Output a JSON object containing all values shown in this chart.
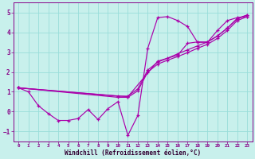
{
  "xlabel": "Windchill (Refroidissement éolien,°C)",
  "ylabel": "",
  "background_color": "#c8f0ec",
  "grid_color": "#99ddda",
  "line_color": "#aa00aa",
  "spine_color": "#880088",
  "xlim": [
    -0.5,
    23.5
  ],
  "ylim": [
    -1.5,
    5.5
  ],
  "yticks": [
    -1,
    0,
    1,
    2,
    3,
    4,
    5
  ],
  "xticks": [
    0,
    1,
    2,
    3,
    4,
    5,
    6,
    7,
    8,
    9,
    10,
    11,
    12,
    13,
    14,
    15,
    16,
    17,
    18,
    19,
    20,
    21,
    22,
    23
  ],
  "curve1_x": [
    0,
    1,
    2,
    3,
    4,
    5,
    6,
    7,
    8,
    9,
    10,
    11,
    12,
    13,
    14,
    15,
    16,
    17,
    18,
    19,
    20,
    21,
    22,
    23
  ],
  "curve1_y": [
    1.2,
    1.0,
    0.3,
    -0.1,
    -0.45,
    -0.45,
    -0.35,
    0.1,
    -0.4,
    0.15,
    0.5,
    -1.2,
    -0.2,
    3.2,
    4.75,
    4.8,
    4.6,
    4.3,
    3.5,
    3.5,
    4.1,
    4.6,
    4.75,
    4.8
  ],
  "curve2_x": [
    0,
    10,
    11,
    12,
    13,
    14,
    15,
    16,
    17,
    18,
    19,
    20,
    21,
    22,
    23
  ],
  "curve2_y": [
    1.2,
    0.72,
    0.72,
    1.05,
    2.0,
    2.4,
    2.6,
    2.78,
    2.98,
    3.2,
    3.4,
    3.7,
    4.1,
    4.6,
    4.8
  ],
  "curve3_x": [
    0,
    10,
    11,
    12,
    13,
    14,
    15,
    16,
    17,
    18,
    19,
    20,
    21,
    22,
    23
  ],
  "curve3_y": [
    1.2,
    0.78,
    0.78,
    1.15,
    2.1,
    2.5,
    2.7,
    2.92,
    3.12,
    3.32,
    3.52,
    3.82,
    4.22,
    4.68,
    4.88
  ],
  "curve4_x": [
    0,
    11,
    14,
    16,
    17,
    18,
    19,
    20,
    21,
    22,
    23
  ],
  "curve4_y": [
    1.2,
    0.75,
    2.55,
    2.85,
    3.45,
    3.52,
    3.52,
    3.82,
    4.22,
    4.72,
    4.88
  ]
}
